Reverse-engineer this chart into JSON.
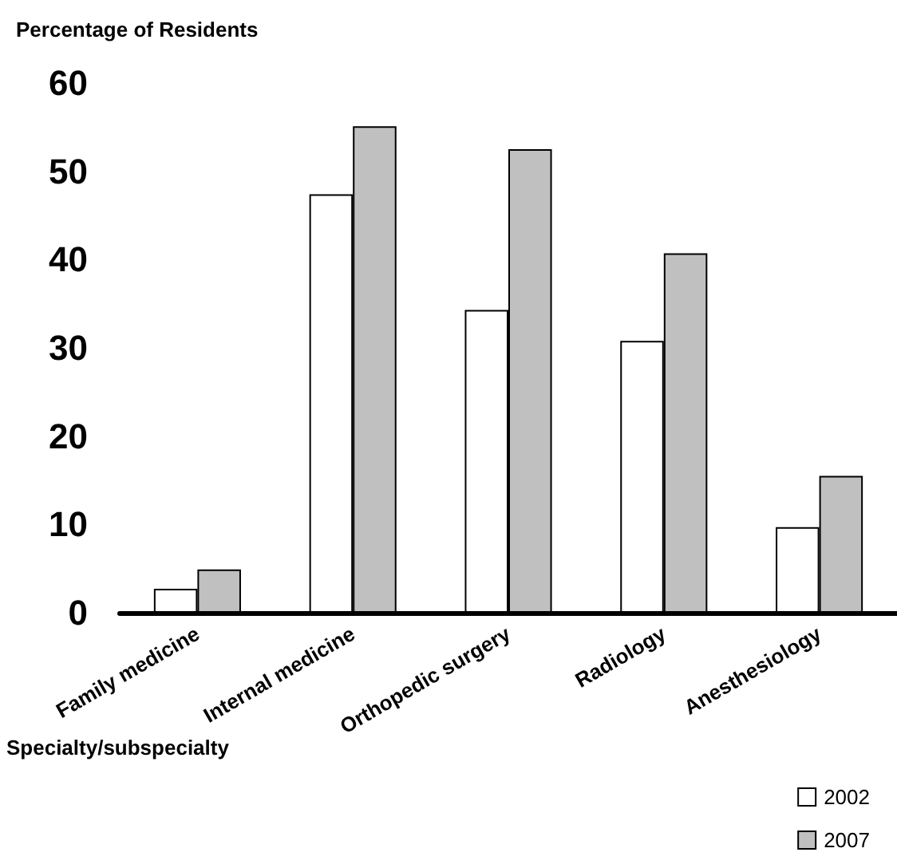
{
  "chart_data": {
    "type": "bar",
    "ylabel": "Percentage of Residents",
    "xlabel": "Specialty/subspecialty",
    "categories": [
      "Family medicine",
      "Internal medicine",
      "Orthopedic surgery",
      "Radiology",
      "Anesthesiology"
    ],
    "series": [
      {
        "name": "2002",
        "color": "#ffffff",
        "values": [
          2.7,
          47.4,
          34.3,
          30.8,
          9.7
        ]
      },
      {
        "name": "2007",
        "color": "#c0c0c0",
        "values": [
          4.9,
          55.1,
          52.5,
          40.7,
          15.5
        ]
      }
    ],
    "ylim": [
      0,
      60
    ],
    "yticks": [
      0,
      10,
      20,
      30,
      40,
      50,
      60
    ],
    "grid": false,
    "legend": "bottom right"
  }
}
